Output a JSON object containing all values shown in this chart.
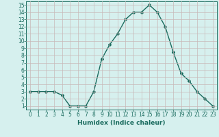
{
  "xlabel": "Humidex (Indice chaleur)",
  "ylabel": "",
  "x_values": [
    0,
    1,
    2,
    3,
    4,
    5,
    6,
    7,
    8,
    9,
    10,
    11,
    12,
    13,
    14,
    15,
    16,
    17,
    18,
    19,
    20,
    21,
    22,
    23
  ],
  "y_values": [
    3,
    3,
    3,
    3,
    2.5,
    1,
    1,
    1,
    3,
    7.5,
    9.5,
    11,
    13,
    14,
    14,
    15,
    14,
    12,
    8.5,
    5.5,
    4.5,
    3,
    2,
    1
  ],
  "line_color": "#1a6b5e",
  "bg_color": "#d6f0ee",
  "grid_color": "#c8b8b8",
  "xlim": [
    -0.5,
    23.5
  ],
  "ylim": [
    0.5,
    15.5
  ],
  "yticks": [
    1,
    2,
    3,
    4,
    5,
    6,
    7,
    8,
    9,
    10,
    11,
    12,
    13,
    14,
    15
  ],
  "xticks": [
    0,
    1,
    2,
    3,
    4,
    5,
    6,
    7,
    8,
    9,
    10,
    11,
    12,
    13,
    14,
    15,
    16,
    17,
    18,
    19,
    20,
    21,
    22,
    23
  ],
  "marker": "D",
  "marker_size": 2.0,
  "line_width": 1.0,
  "font_size_label": 6.5,
  "font_size_tick": 5.5
}
